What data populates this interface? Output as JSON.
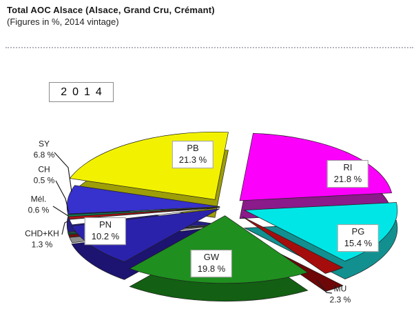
{
  "header": {
    "title": "Total AOC Alsace (Alsace, Grand Cru, Crémant)",
    "subtitle": "(Figures in %, 2014 vintage)"
  },
  "year_box": {
    "label": "2014"
  },
  "chart_data": {
    "type": "pie",
    "style": "3d-exploded",
    "title": "Total AOC Alsace (Alsace, Grand Cru, Crémant)",
    "subtitle": "(Figures in %, 2014 vintage)",
    "year": "2014",
    "unit": "%",
    "start_angle_deg": -85,
    "slices": [
      {
        "code": "RI",
        "pct": 21.8,
        "color": "#FB00FB",
        "side_color": "#8B1A8B"
      },
      {
        "code": "PG",
        "pct": 15.4,
        "color": "#00E6E6",
        "side_color": "#129090"
      },
      {
        "code": "MU",
        "pct": 2.3,
        "color": "#A50D0D",
        "side_color": "#6E0707"
      },
      {
        "code": "GW",
        "pct": 19.8,
        "color": "#1F8F1F",
        "side_color": "#135F13"
      },
      {
        "code": "PN",
        "pct": 10.2,
        "color": "#2B22AB",
        "side_color": "#1C1470"
      },
      {
        "code": "CHD+KH",
        "pct": 1.3,
        "color": "#FFFFFF",
        "side_color": "#8E8E8E"
      },
      {
        "code": "Mél.",
        "pct": 0.6,
        "color": "#B31515",
        "side_color": "#7A0E0E"
      },
      {
        "code": "CH",
        "pct": 0.5,
        "color": "#147A52",
        "side_color": "#0C5236"
      },
      {
        "code": "SY",
        "pct": 6.8,
        "color": "#3731CE",
        "side_color": "#241F86"
      },
      {
        "code": "PB",
        "pct": 21.3,
        "color": "#F2F200",
        "side_color": "#9E9E08"
      }
    ]
  }
}
